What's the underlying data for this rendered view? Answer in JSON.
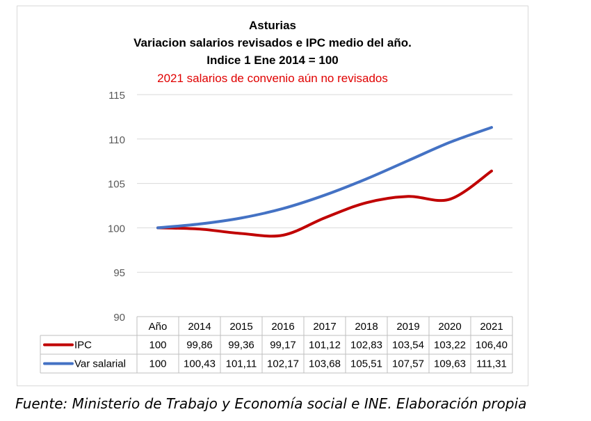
{
  "chart_data": {
    "type": "line",
    "title": [
      "Asturias",
      "Variacion salarios revisados e IPC medio del año.",
      "Indice 1 Ene 2014 = 100"
    ],
    "subtitle": "2021 salarios de convenio aún no revisados",
    "subtitle_color": "#e00000",
    "table_header_label": "Año",
    "categories": [
      "Año",
      "2014",
      "2015",
      "2016",
      "2017",
      "2018",
      "2019",
      "2020",
      "2021"
    ],
    "x": [
      "100",
      "99,86",
      "99,36",
      "99,17",
      "101,12",
      "102,83",
      "103,54",
      "103,22",
      "106,40"
    ],
    "series": [
      {
        "name": "IPC",
        "color": "#c00000",
        "values": [
          100,
          99.86,
          99.36,
          99.17,
          101.12,
          102.83,
          103.54,
          103.22,
          106.4
        ],
        "labels": [
          "100",
          "99,86",
          "99,36",
          "99,17",
          "101,12",
          "102,83",
          "103,54",
          "103,22",
          "106,40"
        ]
      },
      {
        "name": "Var salarial",
        "color": "#4472c4",
        "values": [
          100,
          100.43,
          101.11,
          102.17,
          103.68,
          105.51,
          107.57,
          109.63,
          111.31
        ],
        "labels": [
          "100",
          "100,43",
          "101,11",
          "102,17",
          "103,68",
          "105,51",
          "107,57",
          "109,63",
          "111,31"
        ]
      }
    ],
    "ylim": [
      90,
      115
    ],
    "yticks": [
      "90",
      "95",
      "100",
      "105",
      "110",
      "115"
    ],
    "grid": true,
    "legend": "data-table"
  },
  "source_note": "Fuente: Ministerio de Trabajo y Economía social e INE. Elaboración propia"
}
